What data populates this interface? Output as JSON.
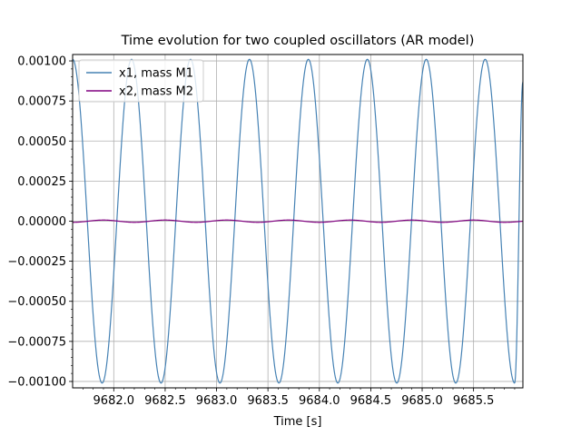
{
  "chart_data": {
    "type": "line",
    "title": "Time evolution for two coupled oscillators (AR model)",
    "xlabel": "Time [s]",
    "ylabel": "",
    "xlim": [
      9681.6,
      9685.98
    ],
    "ylim": [
      -0.00104,
      0.00104
    ],
    "grid": true,
    "legend_position": "top-left",
    "xticks": [
      {
        "value": 9682.0,
        "label": "9682.0"
      },
      {
        "value": 9682.5,
        "label": "9682.5"
      },
      {
        "value": 9683.0,
        "label": "9683.0"
      },
      {
        "value": 9683.5,
        "label": "9683.5"
      },
      {
        "value": 9684.0,
        "label": "9684.0"
      },
      {
        "value": 9684.5,
        "label": "9684.5"
      },
      {
        "value": 9685.0,
        "label": "9685.0"
      },
      {
        "value": 9685.5,
        "label": "9685.5"
      }
    ],
    "yticks": [
      {
        "value": 0.001,
        "label": "0.00100"
      },
      {
        "value": 0.00075,
        "label": "0.00075"
      },
      {
        "value": 0.0005,
        "label": "0.00050"
      },
      {
        "value": 0.00025,
        "label": "0.00025"
      },
      {
        "value": 0.0,
        "label": "0.00000"
      },
      {
        "value": -0.00025,
        "label": "−0.00025"
      },
      {
        "value": -0.0005,
        "label": "−0.00050"
      },
      {
        "value": -0.00075,
        "label": "−0.00075"
      },
      {
        "value": -0.001,
        "label": "−0.00100"
      }
    ],
    "series": [
      {
        "name": "x1, mass M1",
        "color": "#4682b4",
        "x": [
          9681.6,
          9681.743,
          9681.887,
          9682.03,
          9682.173,
          9682.317,
          9682.46,
          9682.603,
          9682.747,
          9682.89,
          9683.033,
          9683.177,
          9683.32,
          9683.463,
          9683.607,
          9683.75,
          9683.893,
          9684.037,
          9684.18,
          9684.323,
          9684.467,
          9684.61,
          9684.753,
          9684.897,
          9685.04,
          9685.183,
          9685.327,
          9685.47,
          9685.613,
          9685.757,
          9685.9,
          9685.98
        ],
        "y": [
          0.00101,
          0.0,
          -0.00101,
          0.0,
          0.00101,
          0.0,
          -0.00101,
          0.0,
          0.00101,
          0.0,
          -0.00101,
          0.0,
          0.00101,
          0.0,
          -0.00101,
          0.0,
          0.00101,
          0.0,
          -0.00101,
          0.0,
          0.00101,
          0.0,
          -0.00101,
          0.0,
          0.00101,
          0.0,
          -0.00101,
          0.0,
          0.00101,
          0.0,
          -0.00101,
          0.00087
        ]
      },
      {
        "name": "x2, mass M2",
        "color": "#800080",
        "x": [
          9681.6,
          9681.9,
          9682.2,
          9682.5,
          9682.8,
          9683.1,
          9683.4,
          9683.7,
          9684.0,
          9684.3,
          9684.6,
          9684.9,
          9685.2,
          9685.5,
          9685.8,
          9685.98
        ],
        "y": [
          -7e-06,
          7e-06,
          -7e-06,
          7e-06,
          -7e-06,
          7e-06,
          -7e-06,
          7e-06,
          -7e-06,
          7e-06,
          -7e-06,
          7e-06,
          -7e-06,
          7e-06,
          -7e-06,
          0.0
        ]
      }
    ]
  }
}
